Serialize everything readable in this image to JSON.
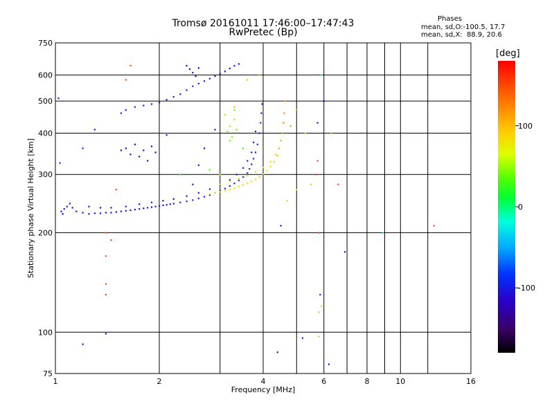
{
  "title": "Tromsø 20161011 17:46:00–17:47:43",
  "subtitle": "RwPretec (Bp)",
  "stats": {
    "heading": "Phases",
    "line_o": "mean, sd,O:-100.5, 17.7",
    "line_x": "mean, sd,X:  88.9, 20.6"
  },
  "colorbar": {
    "label": "[deg]",
    "ticks": [
      "100",
      "0",
      "-100"
    ],
    "tick_values": [
      100,
      0,
      -100
    ],
    "range": [
      -180,
      180
    ]
  },
  "chart_data": {
    "type": "scatter",
    "xlabel": "Frequency [MHz]",
    "ylabel": "Stationary phase Virtual Height [km]",
    "x_scale": "log",
    "y_scale": "log",
    "xlim": [
      1,
      16
    ],
    "ylim": [
      75,
      750
    ],
    "grid": true,
    "x_tick_labels": [
      "1",
      "2",
      "4",
      "6",
      "8",
      "10",
      "16"
    ],
    "x_tick_values": [
      1,
      2,
      4,
      6,
      8,
      10,
      16
    ],
    "x_grid_values": [
      1,
      2,
      3,
      4,
      5,
      6,
      7,
      8,
      9,
      10,
      12,
      16
    ],
    "y_tick_labels": [
      "75",
      "100",
      "200",
      "300",
      "400",
      "500",
      "600",
      "750"
    ],
    "y_tick_values": [
      75,
      100,
      200,
      300,
      400,
      500,
      600,
      750
    ],
    "y_grid_values": [
      75,
      100,
      200,
      300,
      400,
      500,
      600,
      750
    ],
    "points": [
      [
        1.02,
        510,
        -100
      ],
      [
        1.03,
        325,
        -80
      ],
      [
        1.04,
        232,
        -100
      ],
      [
        1.05,
        228,
        -110
      ],
      [
        1.06,
        236,
        -110
      ],
      [
        1.08,
        240,
        -100
      ],
      [
        1.1,
        245,
        -95
      ],
      [
        1.12,
        238,
        -110
      ],
      [
        1.15,
        232,
        -110
      ],
      [
        1.2,
        230,
        -115
      ],
      [
        1.25,
        228,
        -110
      ],
      [
        1.3,
        229,
        -115
      ],
      [
        1.35,
        229,
        -110
      ],
      [
        1.4,
        230,
        -115
      ],
      [
        1.45,
        230,
        -110
      ],
      [
        1.5,
        231,
        -110
      ],
      [
        1.55,
        232,
        -110
      ],
      [
        1.6,
        233,
        -110
      ],
      [
        1.65,
        234,
        -105
      ],
      [
        1.7,
        235,
        -110
      ],
      [
        1.75,
        236,
        -105
      ],
      [
        1.8,
        237,
        -110
      ],
      [
        1.85,
        238,
        -105
      ],
      [
        1.9,
        239,
        -110
      ],
      [
        1.95,
        240,
        -105
      ],
      [
        2.0,
        241,
        -100
      ],
      [
        2.05,
        242,
        -105
      ],
      [
        2.1,
        243,
        -100
      ],
      [
        2.15,
        244,
        -100
      ],
      [
        2.2,
        245,
        -100
      ],
      [
        2.3,
        247,
        -100
      ],
      [
        2.4,
        249,
        -100
      ],
      [
        2.5,
        251,
        -95
      ],
      [
        2.6,
        254,
        -100
      ],
      [
        2.7,
        257,
        -95
      ],
      [
        2.8,
        260,
        -100
      ],
      [
        2.9,
        264,
        -95
      ],
      [
        3.0,
        268,
        -100
      ],
      [
        3.1,
        272,
        -95
      ],
      [
        3.2,
        277,
        -100
      ],
      [
        3.3,
        282,
        -95
      ],
      [
        3.4,
        288,
        -100
      ],
      [
        3.5,
        295,
        -95
      ],
      [
        3.6,
        303,
        -100
      ],
      [
        3.65,
        312,
        -95
      ],
      [
        3.7,
        322,
        -100
      ],
      [
        3.75,
        335,
        -95
      ],
      [
        3.8,
        350,
        -100
      ],
      [
        3.85,
        370,
        -95
      ],
      [
        3.9,
        400,
        -100
      ],
      [
        3.93,
        430,
        -95
      ],
      [
        3.95,
        460,
        -100
      ],
      [
        3.97,
        490,
        -95
      ],
      [
        1.25,
        240,
        -110
      ],
      [
        1.35,
        238,
        -105
      ],
      [
        1.45,
        238,
        -110
      ],
      [
        1.6,
        240,
        -105
      ],
      [
        1.75,
        244,
        -110
      ],
      [
        1.9,
        247,
        -105
      ],
      [
        2.05,
        250,
        -100
      ],
      [
        2.2,
        253,
        -105
      ],
      [
        2.4,
        258,
        -100
      ],
      [
        2.6,
        264,
        -100
      ],
      [
        2.8,
        271,
        -95
      ],
      [
        3.0,
        279,
        -100
      ],
      [
        3.2,
        289,
        -95
      ],
      [
        3.35,
        300,
        -100
      ],
      [
        3.5,
        314,
        -95
      ],
      [
        3.6,
        330,
        -100
      ],
      [
        3.7,
        350,
        -95
      ],
      [
        3.75,
        375,
        -100
      ],
      [
        3.8,
        405,
        -95
      ],
      [
        2.8,
        262,
        85
      ],
      [
        2.9,
        264,
        90
      ],
      [
        3.0,
        266,
        85
      ],
      [
        3.1,
        268,
        90
      ],
      [
        3.2,
        270,
        95
      ],
      [
        3.3,
        273,
        85
      ],
      [
        3.4,
        276,
        90
      ],
      [
        3.5,
        279,
        95
      ],
      [
        3.6,
        282,
        90
      ],
      [
        3.7,
        286,
        85
      ],
      [
        3.8,
        290,
        90
      ],
      [
        3.9,
        295,
        95
      ],
      [
        4.0,
        301,
        90
      ],
      [
        4.1,
        308,
        85
      ],
      [
        4.2,
        317,
        90
      ],
      [
        4.3,
        328,
        95
      ],
      [
        4.4,
        342,
        100
      ],
      [
        4.45,
        360,
        110
      ],
      [
        4.5,
        380,
        115
      ],
      [
        4.55,
        400,
        120
      ],
      [
        4.58,
        430,
        125
      ],
      [
        4.6,
        460,
        120
      ],
      [
        4.62,
        500,
        115
      ],
      [
        3.0,
        280,
        80
      ],
      [
        3.2,
        286,
        85
      ],
      [
        3.4,
        292,
        80
      ],
      [
        3.6,
        298,
        85
      ],
      [
        3.8,
        306,
        90
      ],
      [
        4.0,
        315,
        85
      ],
      [
        4.2,
        328,
        90
      ],
      [
        4.35,
        345,
        95
      ],
      [
        3.15,
        405,
        40
      ],
      [
        3.2,
        420,
        45
      ],
      [
        3.25,
        390,
        40
      ],
      [
        3.3,
        440,
        45
      ],
      [
        3.35,
        410,
        40
      ],
      [
        3.3,
        470,
        35
      ],
      [
        3.1,
        455,
        45
      ],
      [
        3.2,
        380,
        40
      ],
      [
        1.55,
        460,
        -100
      ],
      [
        1.6,
        470,
        -105
      ],
      [
        1.7,
        480,
        -100
      ],
      [
        1.8,
        485,
        -105
      ],
      [
        1.9,
        490,
        -100
      ],
      [
        2.0,
        495,
        -105
      ],
      [
        2.1,
        505,
        -100
      ],
      [
        2.2,
        515,
        -95
      ],
      [
        2.3,
        525,
        -100
      ],
      [
        2.4,
        540,
        -95
      ],
      [
        2.5,
        555,
        -90
      ],
      [
        2.6,
        565,
        -95
      ],
      [
        2.7,
        575,
        -90
      ],
      [
        2.8,
        585,
        -95
      ],
      [
        2.9,
        595,
        -90
      ],
      [
        3.0,
        605,
        -95
      ],
      [
        3.1,
        615,
        -100
      ],
      [
        3.2,
        628,
        -105
      ],
      [
        3.3,
        640,
        -110
      ],
      [
        3.4,
        648,
        -110
      ],
      [
        2.4,
        640,
        -110
      ],
      [
        2.45,
        625,
        -115
      ],
      [
        2.5,
        610,
        -110
      ],
      [
        2.55,
        595,
        -115
      ],
      [
        2.6,
        630,
        -120
      ],
      [
        1.6,
        360,
        -120
      ],
      [
        1.65,
        345,
        -125
      ],
      [
        1.7,
        370,
        -120
      ],
      [
        1.75,
        340,
        -125
      ],
      [
        1.8,
        355,
        -120
      ],
      [
        1.85,
        330,
        -125
      ],
      [
        1.9,
        365,
        -120
      ],
      [
        1.95,
        350,
        -125
      ],
      [
        1.55,
        355,
        -120
      ],
      [
        1.4,
        200,
        150
      ],
      [
        1.4,
        140,
        150
      ],
      [
        1.4,
        130,
        150
      ],
      [
        1.45,
        190,
        150
      ],
      [
        1.4,
        170,
        150
      ],
      [
        1.5,
        270,
        150
      ],
      [
        1.6,
        580,
        150
      ],
      [
        1.65,
        640,
        150
      ],
      [
        1.4,
        99,
        -100
      ],
      [
        1.2,
        92,
        -100
      ],
      [
        4.4,
        87,
        -100
      ],
      [
        4.5,
        210,
        -100
      ],
      [
        4.7,
        250,
        90
      ],
      [
        5.0,
        270,
        80
      ],
      [
        5.2,
        96,
        -100
      ],
      [
        5.5,
        280,
        100
      ],
      [
        5.7,
        300,
        150
      ],
      [
        5.75,
        330,
        150
      ],
      [
        5.8,
        200,
        150
      ],
      [
        5.85,
        130,
        -80
      ],
      [
        5.8,
        115,
        100
      ],
      [
        5.9,
        120,
        100
      ],
      [
        6.3,
        400,
        110
      ],
      [
        6.6,
        280,
        150
      ],
      [
        6.9,
        175,
        -110
      ],
      [
        6.2,
        80,
        -100
      ],
      [
        5.8,
        97,
        100
      ],
      [
        8.9,
        200,
        -30
      ],
      [
        12.5,
        210,
        150
      ],
      [
        5.9,
        600,
        -20
      ],
      [
        5.75,
        430,
        -110
      ],
      [
        6.0,
        500,
        -110
      ],
      [
        3.3,
        480,
        110
      ],
      [
        3.9,
        600,
        110
      ],
      [
        3.6,
        580,
        100
      ],
      [
        5.0,
        470,
        120
      ],
      [
        4.8,
        420,
        120
      ],
      [
        5.3,
        400,
        100
      ],
      [
        2.3,
        300,
        20
      ],
      [
        2.5,
        280,
        -110
      ],
      [
        2.6,
        320,
        -100
      ],
      [
        2.7,
        360,
        -110
      ],
      [
        2.8,
        310,
        30
      ],
      [
        1.2,
        360,
        -100
      ],
      [
        1.3,
        410,
        -110
      ],
      [
        2.1,
        395,
        -110
      ],
      [
        2.9,
        410,
        -100
      ],
      [
        3.0,
        300,
        60
      ],
      [
        3.5,
        360,
        30
      ]
    ]
  }
}
